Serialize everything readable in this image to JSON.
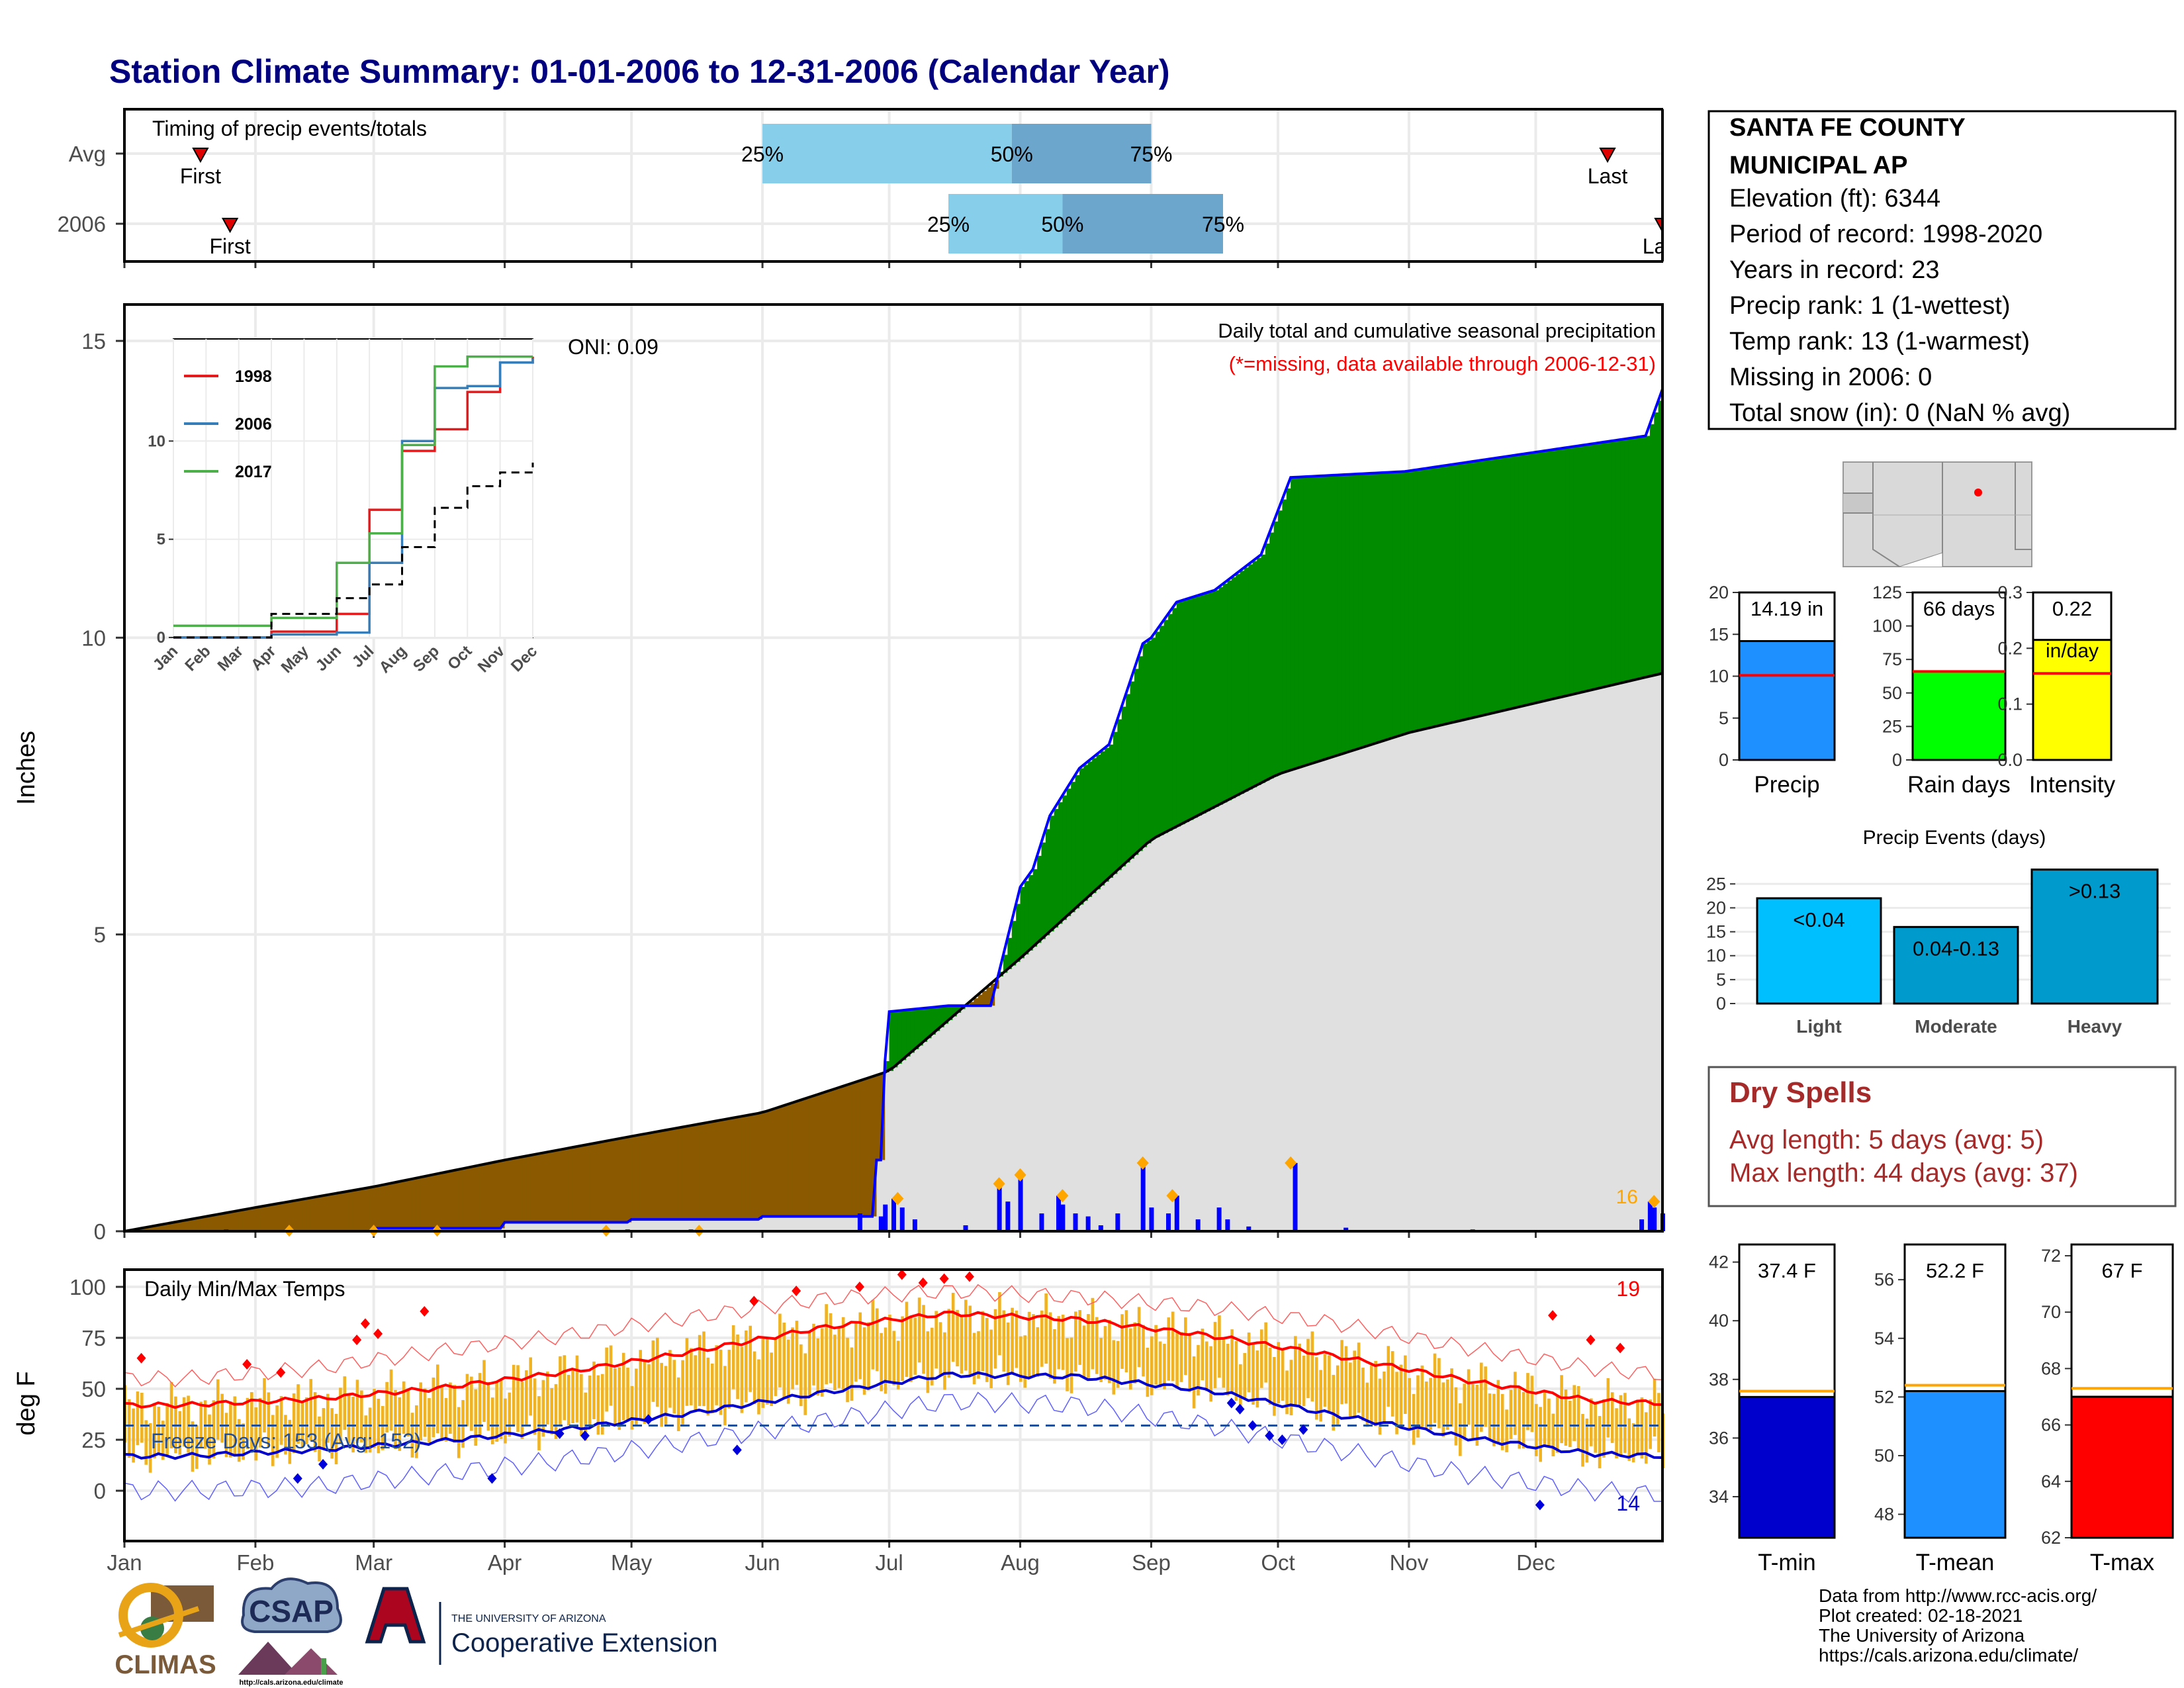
{
  "title": "Station Climate Summary: 01-01-2006 to 12-31-2006 (Calendar Year)",
  "colors": {
    "title": "#00007f",
    "q_light": "#87ceeb",
    "q_dark": "#6ca6cd",
    "above_avg": "#008b00",
    "below_avg": "#8b5a00",
    "avg_fill": "#e0e0e0",
    "daily_bar": "#0000ff",
    "temp_range": "#f0b323",
    "tmax": "#ff0000",
    "tmin": "#0000cc",
    "precip_bar": "#1e90ff",
    "raindays_bar": "#00ff00",
    "intensity_bar": "#ffff00",
    "events_light": "#00bfff",
    "events_moderate": "#009acd",
    "events_heavy": "#009acd",
    "dry_spells": "#a52a2a"
  },
  "timing": {
    "title": "Timing of precip events/totals",
    "rows": [
      "Avg",
      "2006"
    ],
    "avg": {
      "first": "Jan 19",
      "q25": "Jun 1",
      "q50": "Jul 30",
      "q75": "Sep 1",
      "last": "Dec 18"
    },
    "y2006": {
      "first": "Jan 26",
      "q25": "Jul 15",
      "q50": "Aug 11",
      "q75": "Sep 18",
      "last": "Dec 31"
    },
    "labels": {
      "first": "First",
      "last": "Last",
      "q25": "25%",
      "q50": "50%",
      "q75": "75%"
    }
  },
  "precip": {
    "ylabel": "Inches",
    "oni": "ONI: 0.09",
    "note1": "Daily total and cumulative seasonal precipitation",
    "note2": "(*=missing, data available through 2006-12-31)",
    "count_label": "16",
    "yticks": [
      "0",
      "5",
      "10",
      "15"
    ]
  },
  "inset": {
    "series": [
      "1998",
      "2006",
      "2017"
    ],
    "colors": [
      "#e41a1c",
      "#377eb8",
      "#4daf4a"
    ],
    "yticks": [
      "0",
      "5",
      "10"
    ],
    "months": [
      "Jan",
      "Feb",
      "Mar",
      "Apr",
      "May",
      "Jun",
      "Jul",
      "Aug",
      "Sep",
      "Oct",
      "Nov",
      "Dec"
    ]
  },
  "temps": {
    "title": "Daily Min/Max Temps",
    "ylabel": "deg F",
    "yticks": [
      "0",
      "25",
      "50",
      "75",
      "100"
    ],
    "freeze": "Freeze Days: 153 (Avg: 152)",
    "rec_high_count": "19",
    "rec_low_count": "14"
  },
  "months": [
    "Jan",
    "Feb",
    "Mar",
    "Apr",
    "May",
    "Jun",
    "Jul",
    "Aug",
    "Sep",
    "Oct",
    "Nov",
    "Dec"
  ],
  "station": {
    "name": "SANTA FE COUNTY MUNICIPAL AP",
    "elevation": "Elevation (ft): 6344",
    "period": "Period of record: 1998-2020",
    "years": "Years in record: 23",
    "precip_rank": "Precip rank: 1 (1-wettest)",
    "temp_rank": "Temp rank: 13 (1-warmest)",
    "missing": "Missing in 2006: 0",
    "snow": "Total snow (in): 0 (NaN % avg)"
  },
  "precip_panels": [
    {
      "label": "Precip",
      "value_text": "14.19 in",
      "value": 14.19,
      "avg": 10.1,
      "max": 20,
      "yticks": [
        "0",
        "5",
        "10",
        "15",
        "20"
      ]
    },
    {
      "label": "Rain days",
      "value_text": "66 days",
      "value": 66,
      "avg": 66,
      "max": 125,
      "yticks": [
        "0",
        "25",
        "50",
        "75",
        "100",
        "125"
      ]
    },
    {
      "label": "Intensity",
      "value_text": "0.22",
      "value_sub": "in/day",
      "value": 0.215,
      "avg": 0.155,
      "max": 0.3,
      "yticks": [
        "0.0",
        "0.1",
        "0.2",
        "0.3"
      ]
    }
  ],
  "events": {
    "title": "Precip Events (days)",
    "categories": [
      "Light",
      "Moderate",
      "Heavy"
    ],
    "bar_labels": [
      "<0.04",
      "0.04-0.13",
      ">0.13"
    ],
    "values": [
      22,
      16,
      28
    ],
    "yticks": [
      "0",
      "5",
      "10",
      "15",
      "20",
      "25"
    ]
  },
  "dry_spells": {
    "title": "Dry Spells",
    "avg": "Avg length: 5 days (avg: 5)",
    "max": "Max length: 44 days (avg: 37)"
  },
  "temp_panels": [
    {
      "label": "T-min",
      "value_text": "37.4 F",
      "value": 37.4,
      "avg": 37.6,
      "min": 32.6,
      "max": 42.6,
      "yticks": [
        "34",
        "36",
        "38",
        "40",
        "42"
      ]
    },
    {
      "label": "T-mean",
      "value_text": "52.2 F",
      "value": 52.2,
      "avg": 52.4,
      "min": 47.2,
      "max": 57.2,
      "yticks": [
        "48",
        "50",
        "52",
        "54",
        "56"
      ]
    },
    {
      "label": "T-max",
      "value_text": "67 F",
      "value": 67.0,
      "avg": 67.3,
      "min": 62.0,
      "max": 72.4,
      "yticks": [
        "62",
        "64",
        "66",
        "68",
        "70",
        "72"
      ]
    }
  ],
  "footer": {
    "line1": "Data from http://www.rcc-acis.org/",
    "line2": "Plot created: 02-18-2021",
    "line3": "The University of Arizona",
    "line4": "https://cals.arizona.edu/climate/",
    "climas": "CLIMAS",
    "csap": "CSAP",
    "csap_url": "http://cals.arizona.edu/climate",
    "ua_small": "THE UNIVERSITY OF ARIZONA",
    "ua_big": "Cooperative Extension"
  },
  "chart_data": [
    {
      "type": "area",
      "title": "Daily total and cumulative seasonal precipitation",
      "ylabel": "Inches",
      "ylim": [
        0,
        15.5
      ],
      "series": [
        {
          "name": "2006",
          "x": [
            "Jan 1",
            "Feb 1",
            "Mar 1",
            "Apr 1",
            "May 1",
            "Jun 1",
            "Jun 28",
            "Jul 1",
            "Jul 15",
            "Jul 25",
            "Aug 1",
            "Aug 4",
            "Aug 8",
            "Aug 15",
            "Aug 22",
            "Aug 30",
            "Sep 1",
            "Sep 7",
            "Sep 16",
            "Sep 27",
            "Oct 4",
            "Oct 31",
            "Dec 27",
            "Dec 31"
          ],
          "values": [
            0,
            0,
            0.05,
            0.15,
            0.2,
            0.25,
            1.2,
            3.7,
            3.8,
            3.8,
            5.8,
            6.1,
            7.0,
            7.8,
            8.2,
            9.9,
            10.0,
            10.6,
            10.8,
            11.4,
            12.7,
            12.8,
            13.4,
            14.19
          ]
        },
        {
          "name": "Avg",
          "x": [
            "Jan 1",
            "Feb 1",
            "Mar 1",
            "Apr 1",
            "May 1",
            "Jun 1",
            "Jul 1",
            "Aug 1",
            "Sep 1",
            "Oct 1",
            "Nov 1",
            "Dec 1",
            "Dec 31"
          ],
          "values": [
            0,
            0.4,
            0.75,
            1.2,
            1.6,
            2.0,
            2.7,
            4.6,
            6.6,
            7.7,
            8.4,
            8.9,
            9.4
          ]
        }
      ],
      "daily_peaks": [
        {
          "x": "Jul 3",
          "y": 0.55
        },
        {
          "x": "Jul 27",
          "y": 0.8
        },
        {
          "x": "Aug 1",
          "y": 0.95
        },
        {
          "x": "Aug 11",
          "y": 0.6
        },
        {
          "x": "Aug 30",
          "y": 1.15
        },
        {
          "x": "Sep 6",
          "y": 0.6
        },
        {
          "x": "Oct 4",
          "y": 1.15
        },
        {
          "x": "Dec 29",
          "y": 0.5
        }
      ]
    },
    {
      "type": "line",
      "title": "",
      "xlabel": "",
      "ylim": [
        0,
        15
      ],
      "series": [
        {
          "name": "1998",
          "x": [
            "Jan",
            "Apr",
            "Jun",
            "Jul",
            "Aug",
            "Sep",
            "Oct",
            "Nov",
            "Dec"
          ],
          "values": [
            0,
            0.3,
            1.2,
            6.5,
            9.5,
            10.6,
            12.5,
            14.0,
            14.3
          ]
        },
        {
          "name": "2006",
          "x": [
            "Jan",
            "Apr",
            "Jun",
            "Jul",
            "Aug",
            "Sep",
            "Oct",
            "Nov",
            "Dec"
          ],
          "values": [
            0,
            0.15,
            0.25,
            3.8,
            10.0,
            12.7,
            12.8,
            14.0,
            14.2
          ]
        },
        {
          "name": "2017",
          "x": [
            "Jan",
            "Apr",
            "Jun",
            "Jul",
            "Aug",
            "Sep",
            "Oct",
            "Nov",
            "Dec"
          ],
          "values": [
            0.6,
            1.0,
            3.8,
            5.3,
            9.8,
            13.8,
            14.3,
            14.3,
            14.3
          ]
        },
        {
          "name": "",
          "x": [
            "Jan",
            "Apr",
            "Jun",
            "Jul",
            "Aug",
            "Sep",
            "Oct",
            "Nov",
            "Dec"
          ],
          "values": [
            0,
            1.2,
            2.0,
            2.7,
            4.6,
            6.6,
            7.7,
            8.4,
            8.9
          ]
        }
      ]
    },
    {
      "type": "line",
      "title": "Daily Min/Max Temps",
      "ylabel": "deg F",
      "ylim": [
        -20,
        105
      ],
      "x": [
        "Jan",
        "Feb",
        "Mar",
        "Apr",
        "May",
        "Jun",
        "Jul",
        "Aug",
        "Sep",
        "Oct",
        "Nov",
        "Dec",
        "Dec 31"
      ],
      "series": [
        {
          "name": "",
          "values": [
            42,
            45,
            50,
            58,
            68,
            80,
            87,
            84,
            76,
            66,
            54,
            44,
            43
          ]
        },
        {
          "name": "",
          "values": [
            17,
            20,
            24,
            30,
            38,
            48,
            57,
            56,
            49,
            37,
            26,
            18,
            17
          ]
        },
        {
          "name": "",
          "values": [
            55,
            60,
            68,
            76,
            85,
            94,
            98,
            95,
            90,
            82,
            70,
            60,
            57
          ]
        },
        {
          "name": "",
          "values": [
            0,
            2,
            8,
            15,
            24,
            34,
            44,
            42,
            32,
            20,
            8,
            0,
            -2
          ]
        }
      ],
      "freeze_line": 32
    },
    {
      "type": "bar",
      "categories": [
        "Precip"
      ],
      "values": [
        14.19
      ],
      "ylim": [
        0,
        20
      ]
    },
    {
      "type": "bar",
      "categories": [
        "Rain days"
      ],
      "values": [
        66
      ],
      "ylim": [
        0,
        125
      ]
    },
    {
      "type": "bar",
      "categories": [
        "Intensity"
      ],
      "values": [
        0.22
      ],
      "ylim": [
        0,
        0.3
      ]
    },
    {
      "type": "bar",
      "title": "Precip Events (days)",
      "categories": [
        "Light",
        "Moderate",
        "Heavy"
      ],
      "values": [
        22,
        16,
        28
      ],
      "ylim": [
        0,
        28
      ]
    },
    {
      "type": "bar",
      "categories": [
        "T-min"
      ],
      "values": [
        37.4
      ],
      "ylim": [
        32.6,
        42.6
      ]
    },
    {
      "type": "bar",
      "categories": [
        "T-mean"
      ],
      "values": [
        52.2
      ],
      "ylim": [
        47.2,
        57.2
      ]
    },
    {
      "type": "bar",
      "categories": [
        "T-max"
      ],
      "values": [
        67.0
      ],
      "ylim": [
        62,
        72.4
      ]
    }
  ]
}
